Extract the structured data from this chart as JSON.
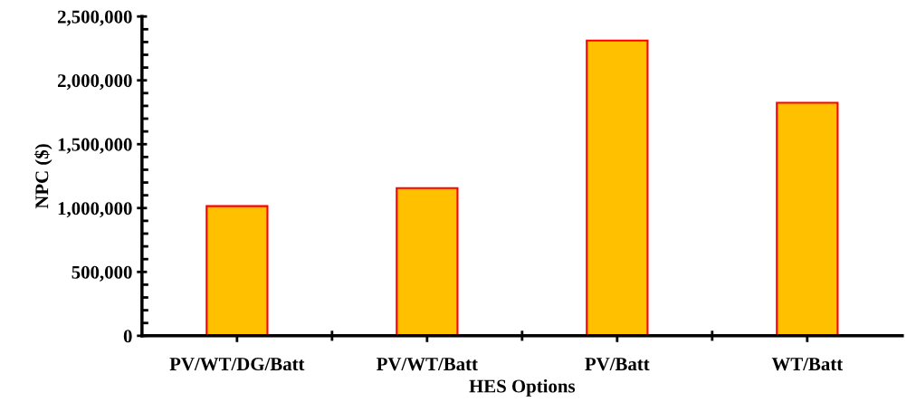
{
  "chart_data": {
    "type": "bar",
    "xlabel": "HES Options",
    "ylabel": "NPC ($)",
    "categories": [
      "PV/WT/DG/Batt",
      "PV/WT/Batt",
      "PV/Batt",
      "WT/Batt"
    ],
    "series": [
      {
        "color": "#ffc000",
        "values": [
          1015000,
          1156000,
          2312000,
          1824000
        ]
      }
    ],
    "ylim": [
      0,
      2500000
    ],
    "yticks": [
      {
        "value": 0,
        "label": "0"
      },
      {
        "value": 500000,
        "label": "500,000"
      },
      {
        "value": 1000000,
        "label": "1,000,000"
      },
      {
        "value": 1500000,
        "label": "1,500,000"
      },
      {
        "value": 2000000,
        "label": "2,000,000"
      },
      {
        "value": 2500000,
        "label": "2,500,000"
      }
    ],
    "grid": false,
    "legend": false
  }
}
